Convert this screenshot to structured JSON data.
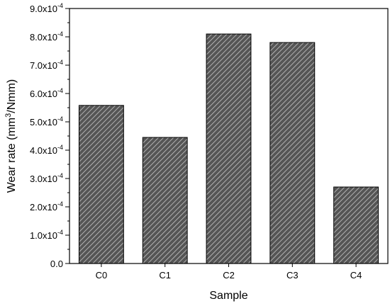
{
  "chart_data": {
    "type": "bar",
    "title": "",
    "xlabel": "Sample",
    "ylabel_parts": [
      "Wear rate (mm",
      "3",
      "/Nmm)"
    ],
    "categories": [
      "C0",
      "C1",
      "C2",
      "C3",
      "C4"
    ],
    "values": [
      0.000558,
      0.000445,
      0.00081,
      0.00078,
      0.00027
    ],
    "ylim": [
      0,
      0.0009
    ],
    "y_ticks": [
      {
        "value": 0,
        "mantissa": "0.0",
        "exponent": ""
      },
      {
        "value": 0.0001,
        "mantissa": "1.0x10",
        "exponent": "-4"
      },
      {
        "value": 0.0002,
        "mantissa": "2.0x10",
        "exponent": "-4"
      },
      {
        "value": 0.0003,
        "mantissa": "3.0x10",
        "exponent": "-4"
      },
      {
        "value": 0.0004,
        "mantissa": "4.0x10",
        "exponent": "-4"
      },
      {
        "value": 0.0005,
        "mantissa": "5.0x10",
        "exponent": "-4"
      },
      {
        "value": 0.0006,
        "mantissa": "6.0x10",
        "exponent": "-4"
      },
      {
        "value": 0.0007,
        "mantissa": "7.0x10",
        "exponent": "-4"
      },
      {
        "value": 0.0008,
        "mantissa": "8.0x10",
        "exponent": "-4"
      },
      {
        "value": 0.0009,
        "mantissa": "9.0x10",
        "exponent": "-4"
      }
    ],
    "bar_fill": "#555555",
    "bar_hatch_color": "#c8c8c8",
    "grid": false,
    "legend": "none"
  }
}
